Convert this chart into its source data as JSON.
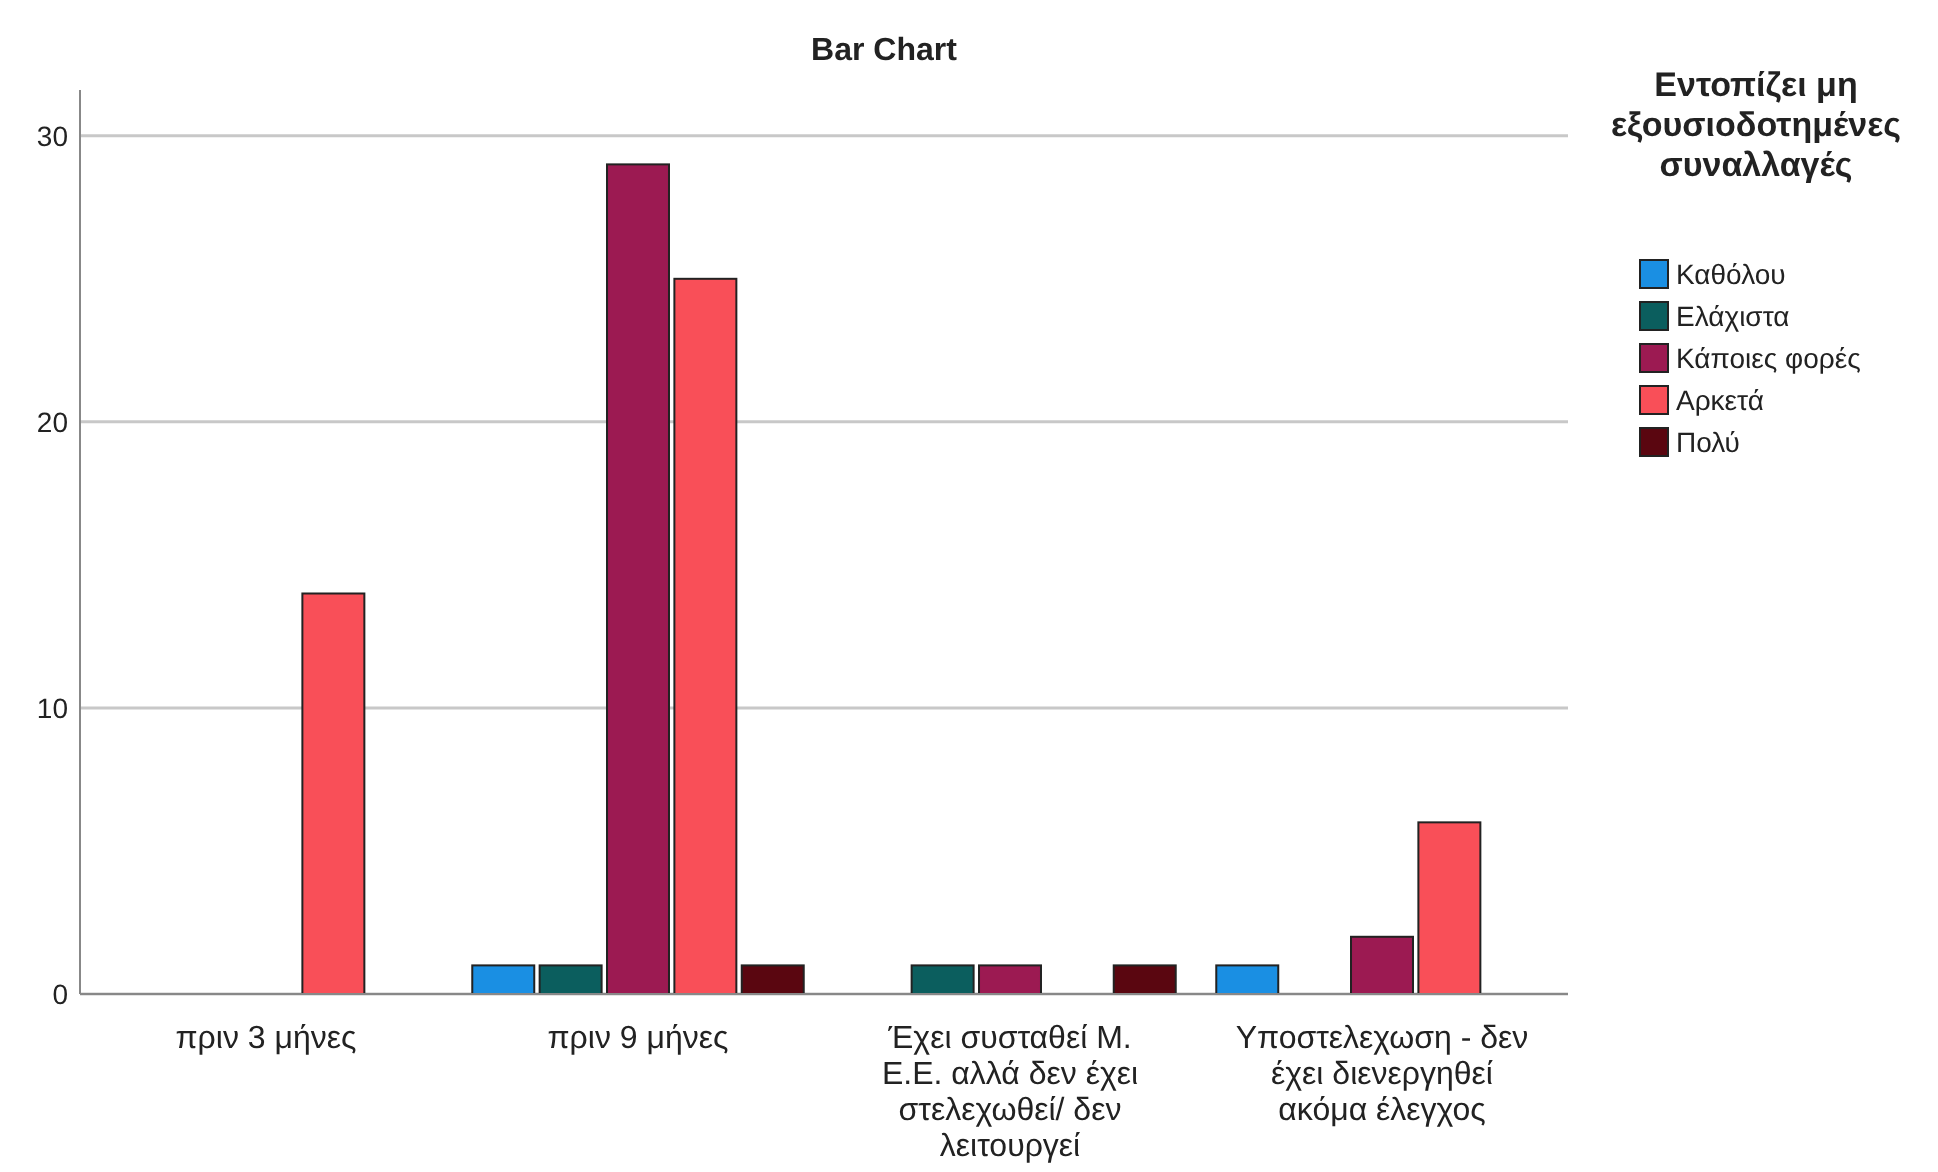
{
  "chart_data": {
    "type": "bar",
    "title": "Bar Chart",
    "legend_title": "Εντοπίζει μη εξουσιοδοτημένες συναλλαγές",
    "categories": [
      "πριν 3 μήνες",
      "πριν 9 μήνες",
      "Έχει συσταθεί Μ. Ε.Ε. αλλά δεν έχει στελεχωθεί/ δεν λειτουργεί",
      "Υποστελεχωση - δεν έχει διενεργηθεί ακόμα έλεγχος"
    ],
    "series": [
      {
        "name": "Καθόλου",
        "color": "#1a8fe3",
        "values": [
          null,
          1,
          null,
          1
        ]
      },
      {
        "name": "Ελάχιστα",
        "color": "#0b5e5e",
        "values": [
          null,
          1,
          1,
          null
        ]
      },
      {
        "name": "Κάποιες φορές",
        "color": "#9c1a52",
        "values": [
          null,
          29,
          1,
          2
        ]
      },
      {
        "name": "Αρκετά",
        "color": "#f94f58",
        "values": [
          14,
          25,
          null,
          6
        ]
      },
      {
        "name": "Πολύ",
        "color": "#5a0610",
        "values": [
          null,
          1,
          1,
          null
        ]
      }
    ],
    "ylim": [
      0,
      31.6
    ],
    "yticks": [
      0,
      10,
      20,
      30
    ],
    "grid": "y",
    "legend": "top right"
  }
}
